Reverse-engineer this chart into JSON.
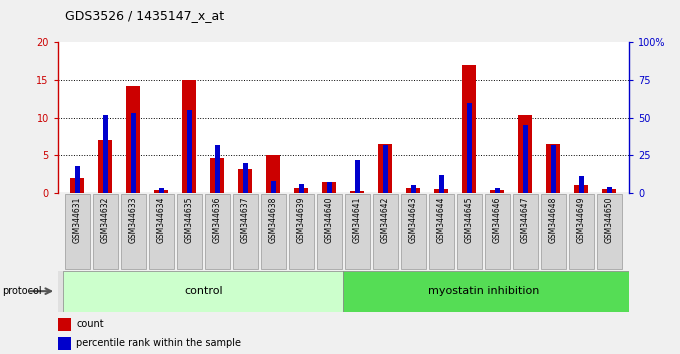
{
  "title": "GDS3526 / 1435147_x_at",
  "samples": [
    "GSM344631",
    "GSM344632",
    "GSM344633",
    "GSM344634",
    "GSM344635",
    "GSM344636",
    "GSM344637",
    "GSM344638",
    "GSM344639",
    "GSM344640",
    "GSM344641",
    "GSM344642",
    "GSM344643",
    "GSM344644",
    "GSM344645",
    "GSM344646",
    "GSM344647",
    "GSM344648",
    "GSM344649",
    "GSM344650"
  ],
  "count": [
    2.0,
    7.0,
    14.2,
    0.4,
    15.0,
    4.7,
    3.2,
    5.1,
    0.7,
    1.4,
    0.3,
    6.5,
    0.6,
    0.5,
    17.0,
    0.4,
    10.3,
    6.5,
    1.0,
    0.5
  ],
  "percentile": [
    18,
    52,
    53,
    3,
    55,
    32,
    20,
    8,
    6,
    7,
    22,
    32,
    5,
    12,
    60,
    3,
    45,
    32,
    11,
    4
  ],
  "control_count": 10,
  "ylim_left": [
    0,
    20
  ],
  "ylim_right": [
    0,
    100
  ],
  "yticks_left": [
    0,
    5,
    10,
    15,
    20
  ],
  "yticks_right": [
    0,
    25,
    50,
    75,
    100
  ],
  "ytick_labels_right": [
    "0",
    "25",
    "50",
    "75",
    "100%"
  ],
  "ytick_labels_left": [
    "0",
    "5",
    "10",
    "15",
    "20"
  ],
  "count_color": "#cc0000",
  "percentile_color": "#0000cc",
  "control_color": "#ccffcc",
  "myostatin_color": "#55dd55",
  "tick_bg_color": "#c8c8c8",
  "plot_bg": "#ffffff",
  "fig_bg": "#f0f0f0",
  "protocol_label": "protocol",
  "control_label": "control",
  "myostatin_label": "myostatin inhibition",
  "legend_count": "count",
  "legend_pct": "percentile rank within the sample"
}
